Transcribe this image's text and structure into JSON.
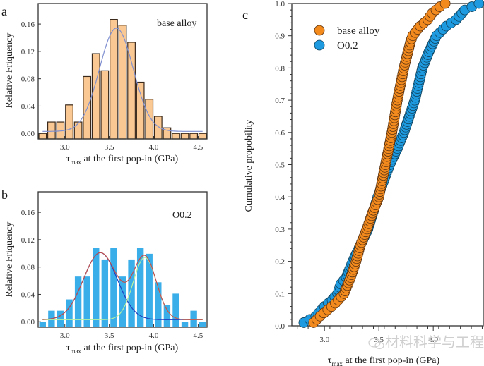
{
  "chart_data": [
    {
      "id": "a",
      "type": "bar",
      "panel_letter": "a",
      "inset_label": "base alloy",
      "xlabel_main": "τ",
      "xlabel_sub": "max",
      "xlabel_rest": " at the first pop-in (GPa)",
      "ylabel": "Relative Friquency",
      "xlim": [
        2.7,
        4.6
      ],
      "ylim": [
        -0.008,
        0.19
      ],
      "xticks": [
        "3.0",
        "3.5",
        "4.0",
        "4.5"
      ],
      "xtick_values": [
        3.0,
        3.5,
        4.0,
        4.5
      ],
      "yticks": [
        "0.00",
        "0.04",
        "0.08",
        "0.12",
        "0.16"
      ],
      "ytick_values": [
        0,
        0.04,
        0.08,
        0.12,
        0.16
      ],
      "bin_start": 2.7,
      "bin_width": 0.1,
      "values": [
        0.0,
        0.0167,
        0.0167,
        0.0417,
        0.0167,
        0.0833,
        0.1167,
        0.0917,
        0.1667,
        0.1583,
        0.1333,
        0.075,
        0.05,
        0.025,
        0.0083,
        0.0,
        0.0,
        0.0,
        0.0
      ],
      "bar_color": "#FAC993",
      "bar_edge": "#3b2a1c",
      "fits": [
        {
          "name": "gaussian-fit",
          "color": "#7f8fd0",
          "mu": 3.58,
          "sigma": 0.19,
          "amp": 0.151,
          "base": 0.003
        }
      ]
    },
    {
      "id": "b",
      "type": "bar",
      "panel_letter": "b",
      "inset_label": "O0.2",
      "xlabel_main": "τ",
      "xlabel_sub": "max",
      "xlabel_rest": " at the first pop-in (GPa)",
      "ylabel": "Relative Friquency",
      "xlim": [
        2.7,
        4.6
      ],
      "ylim": [
        -0.008,
        0.19
      ],
      "xticks": [
        "3.0",
        "3.5",
        "4.0",
        "4.5"
      ],
      "xtick_values": [
        3.0,
        3.5,
        4.0,
        4.5
      ],
      "yticks": [
        "0.00",
        "0.04",
        "0.08",
        "0.12",
        "0.16"
      ],
      "ytick_values": [
        0,
        0.04,
        0.08,
        0.12,
        0.16
      ],
      "bin_start": 2.7,
      "bin_width": 0.1,
      "values": [
        0.0,
        0.0167,
        0.0167,
        0.0333,
        0.0667,
        0.0667,
        0.1083,
        0.0917,
        0.1083,
        0.0667,
        0.0917,
        0.1083,
        0.1,
        0.0583,
        0.025,
        0.0417,
        0.0,
        0.0167,
        0.0
      ],
      "bar_color": "#3AAEE8",
      "bar_edge": "#ffffff",
      "fits": [
        {
          "name": "peak-1-fit",
          "color": "#1f3fbf",
          "mu": 3.4,
          "sigma": 0.19,
          "amp": 0.098,
          "base": 0.003
        },
        {
          "name": "peak-2-fit",
          "color": "#b8f0a0",
          "mu": 3.9,
          "sigma": 0.13,
          "amp": 0.091,
          "base": 0.003
        },
        {
          "name": "cumulative-fit",
          "color": "#c0504d",
          "sum_of": [
            0,
            1
          ],
          "base": 0.003
        }
      ]
    },
    {
      "id": "c",
      "type": "scatter",
      "panel_letter": "c",
      "xlabel_main": "τ",
      "xlabel_sub": "max",
      "xlabel_rest": " at the first pop-in (GPa)",
      "ylabel": "Cumulative propobility",
      "xlim": [
        2.7,
        4.46
      ],
      "ylim": [
        0.0,
        1.0
      ],
      "xticks": [
        "3.0",
        "3.5",
        "4.0"
      ],
      "xtick_values": [
        3.0,
        3.5,
        4.0
      ],
      "yticks": [
        "0.0",
        "0.1",
        "0.2",
        "0.3",
        "0.4",
        "0.5",
        "0.6",
        "0.7",
        "0.8",
        "0.9",
        "1.0"
      ],
      "ytick_values": [
        0.0,
        0.1,
        0.2,
        0.3,
        0.4,
        0.5,
        0.6,
        0.7,
        0.8,
        0.9,
        1.0
      ],
      "legend_position": "top-left",
      "series": [
        {
          "name": "O0.2",
          "color": "#1E9BE0",
          "x": [
            2.81,
            2.92,
            3.0,
            3.07,
            3.12,
            3.15,
            3.2,
            3.26,
            3.33,
            3.4,
            3.49,
            3.6,
            3.67,
            3.73,
            3.78,
            3.83,
            3.9,
            3.96,
            4.03,
            4.12,
            4.21,
            4.29,
            4.42
          ],
          "y": [
            0.01,
            0.03,
            0.06,
            0.08,
            0.1,
            0.13,
            0.15,
            0.2,
            0.25,
            0.3,
            0.4,
            0.5,
            0.55,
            0.6,
            0.65,
            0.7,
            0.8,
            0.85,
            0.9,
            0.93,
            0.95,
            0.98,
            1.0
          ]
        },
        {
          "name": "base alloy",
          "color": "#F28A1E",
          "x": [
            2.9,
            2.96,
            3.03,
            3.1,
            3.18,
            3.24,
            3.29,
            3.33,
            3.39,
            3.44,
            3.5,
            3.53,
            3.56,
            3.59,
            3.62,
            3.67,
            3.73,
            3.79,
            3.81,
            3.88,
            3.95,
            3.99,
            4.06,
            4.11
          ],
          "y": [
            0.01,
            0.03,
            0.05,
            0.07,
            0.1,
            0.15,
            0.2,
            0.25,
            0.3,
            0.35,
            0.4,
            0.45,
            0.5,
            0.55,
            0.6,
            0.7,
            0.8,
            0.88,
            0.9,
            0.93,
            0.95,
            0.97,
            0.99,
            1.0
          ]
        }
      ]
    }
  ],
  "watermark": "材料科学与工程"
}
